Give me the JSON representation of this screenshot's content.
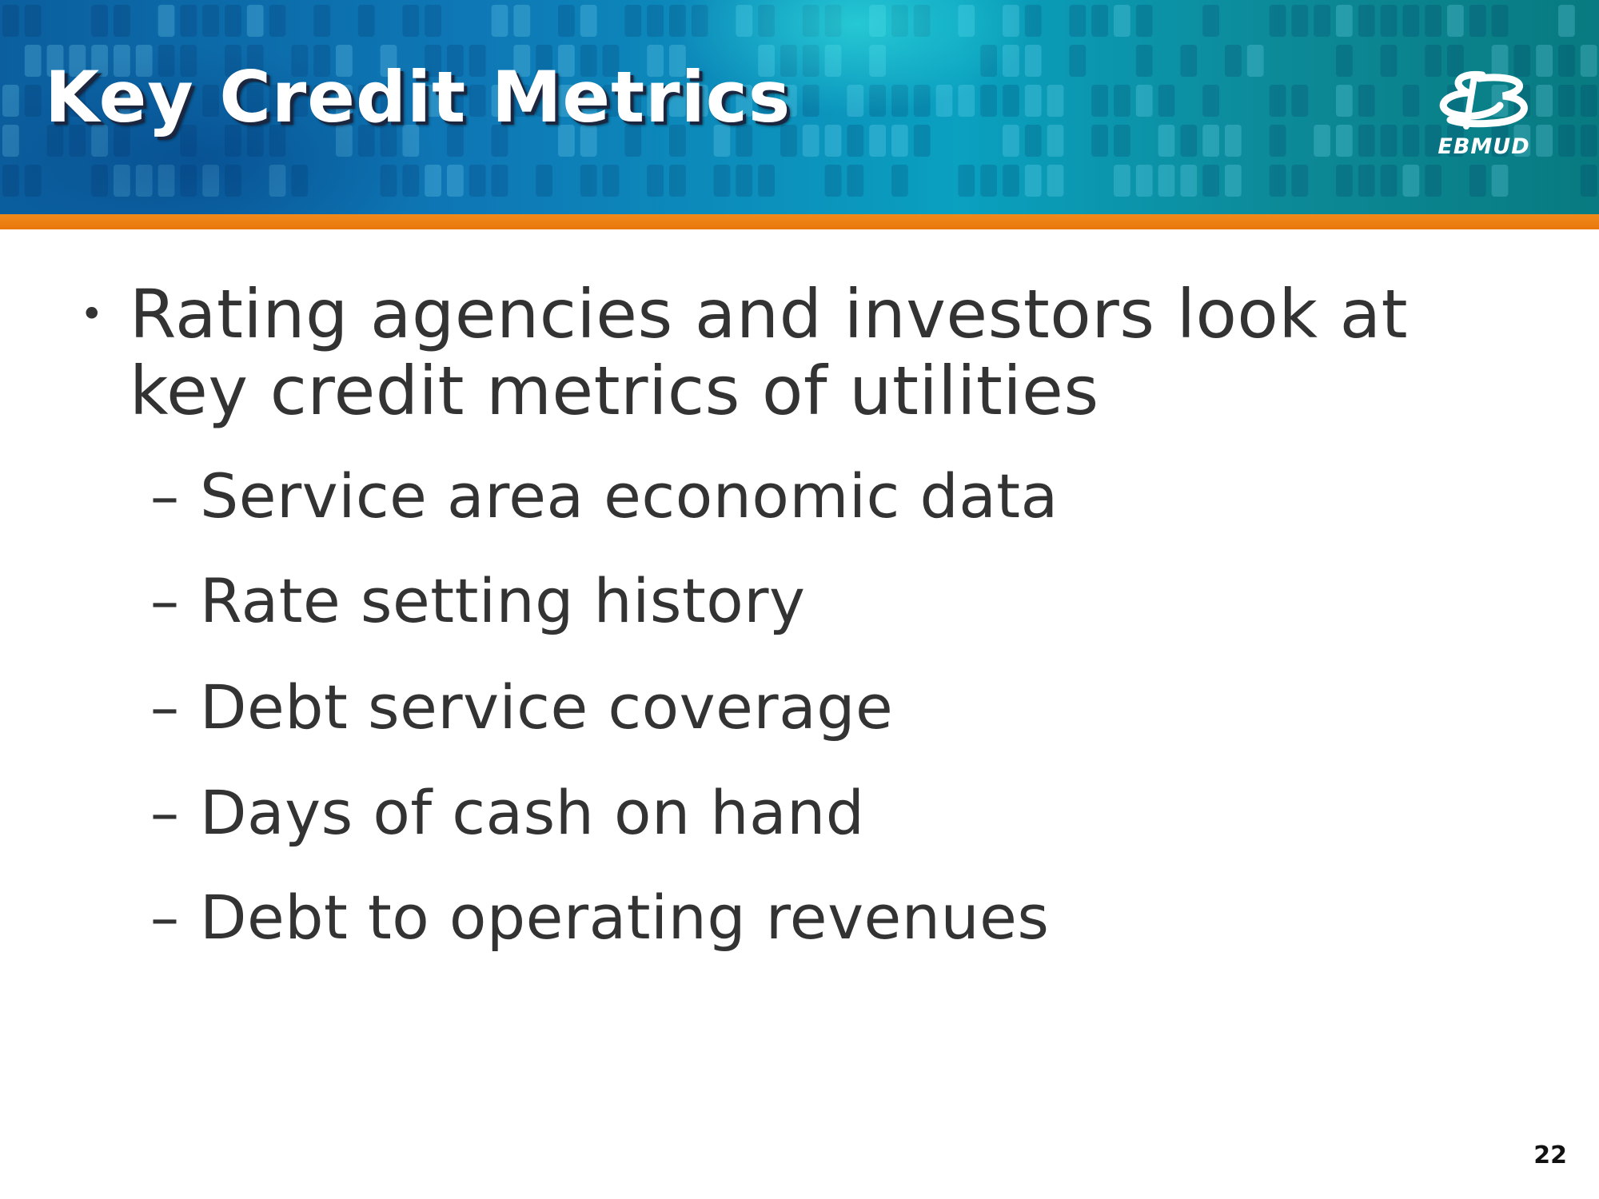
{
  "slide": {
    "title": "Key Credit Metrics",
    "logo": {
      "text": "EBMUD",
      "icon": "ebmud-logo-icon"
    },
    "bullet": {
      "text": "Rating agencies and investors look at key credit metrics of utilities",
      "marker": "•"
    },
    "sub_items": [
      {
        "marker": "–",
        "text": "Service area economic data"
      },
      {
        "marker": "–",
        "text": "Rate setting history"
      },
      {
        "marker": "–",
        "text": "Debt service coverage"
      },
      {
        "marker": "–",
        "text": "Days of cash on hand"
      },
      {
        "marker": "–",
        "text": "Debt to operating revenues"
      }
    ],
    "page_number": "22"
  },
  "colors": {
    "header_blue": "#0e78b6",
    "header_teal": "#0aa0c0",
    "accent_orange": "#e9760a",
    "body_text": "#333333",
    "title_text": "#ffffff"
  }
}
